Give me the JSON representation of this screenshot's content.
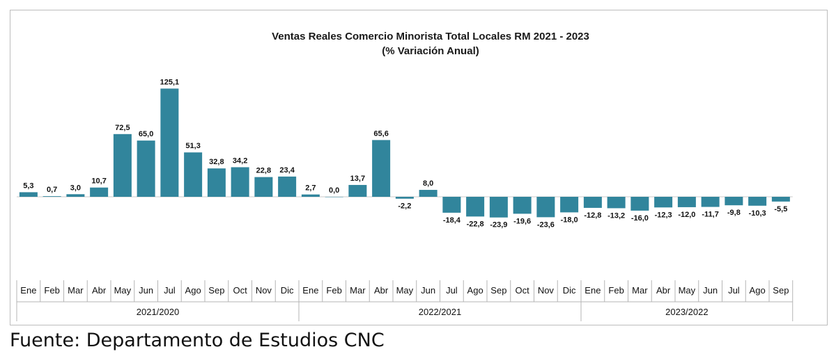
{
  "source": "Fuente: Departamento de Estudios CNC",
  "chart_data": {
    "type": "bar",
    "title": "Ventas Reales Comercio Minorista  Total Locales RM 2021 - 2023",
    "subtitle": "(% Variación Anual)",
    "bar_color": "#31859c",
    "ylim": [
      -90,
      135
    ],
    "categories": [
      "Ene",
      "Feb",
      "Mar",
      "Abr",
      "May",
      "Jun",
      "Jul",
      "Ago",
      "Sep",
      "Oct",
      "Nov",
      "Dic",
      "Ene",
      "Feb",
      "Mar",
      "Abr",
      "May",
      "Jun",
      "Jul",
      "Ago",
      "Sep",
      "Oct",
      "Nov",
      "Dic",
      "Ene",
      "Feb",
      "Mar",
      "Abr",
      "May",
      "Jun",
      "Jul",
      "Ago",
      "Sep"
    ],
    "values": [
      5.3,
      0.7,
      3.0,
      10.7,
      72.5,
      65.0,
      125.1,
      51.3,
      32.8,
      34.2,
      22.8,
      23.4,
      2.7,
      0.0,
      13.7,
      65.6,
      -2.2,
      8.0,
      -18.4,
      -22.8,
      -23.9,
      -19.6,
      -23.6,
      -18.0,
      -12.8,
      -13.2,
      -16.0,
      -12.3,
      -12.0,
      -11.7,
      -9.8,
      -10.3,
      -5.5
    ],
    "value_labels": [
      "5,3",
      "0,7",
      "3,0",
      "10,7",
      "72,5",
      "65,0",
      "125,1",
      "51,3",
      "32,8",
      "34,2",
      "22,8",
      "23,4",
      "2,7",
      "0,0",
      "13,7",
      "65,6",
      "-2,2",
      "8,0",
      "-18,4",
      "-22,8",
      "-23,9",
      "-19,6",
      "-23,6",
      "-18,0",
      "-12,8",
      "-13,2",
      "-16,0",
      "-12,3",
      "-12,0",
      "-11,7",
      "-9,8",
      "-10,3",
      "-5,5"
    ],
    "groups": [
      {
        "label": "2021/2020",
        "count": 12
      },
      {
        "label": "2022/2021",
        "count": 12
      },
      {
        "label": "2023/2022",
        "count": 9
      }
    ]
  }
}
